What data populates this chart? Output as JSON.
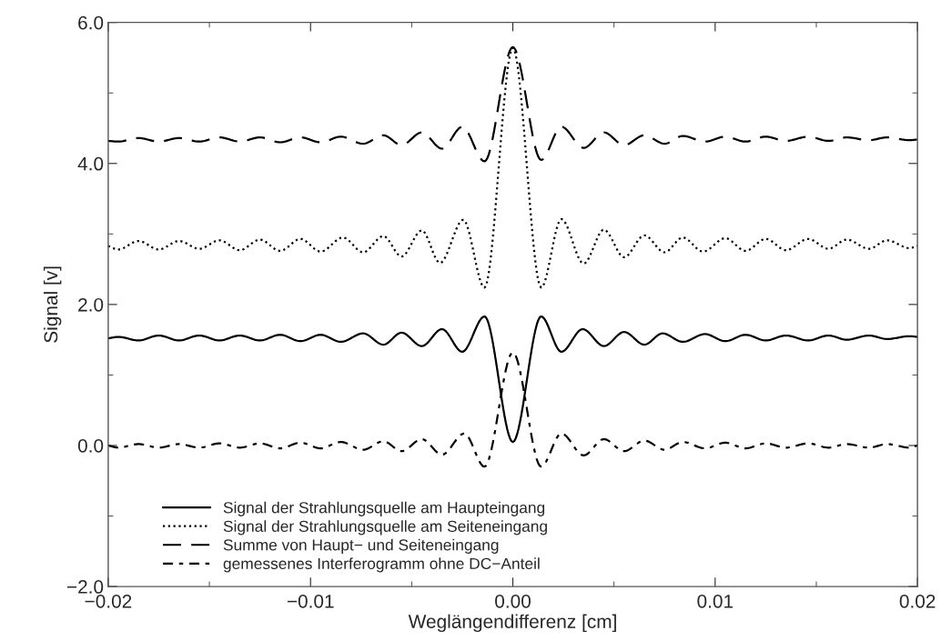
{
  "chart_data": {
    "type": "line",
    "xlabel": "Weglängendifferenz [cm]",
    "ylabel": "Signal [v]",
    "xlim": [
      -0.02,
      0.02
    ],
    "ylim": [
      -2.0,
      6.0
    ],
    "xticks": [
      {
        "value": -0.02,
        "label": "−0.02"
      },
      {
        "value": -0.015,
        "label": null
      },
      {
        "value": -0.01,
        "label": "−0.01"
      },
      {
        "value": -0.005,
        "label": null
      },
      {
        "value": 0,
        "label": "0.00"
      },
      {
        "value": 0.005,
        "label": null
      },
      {
        "value": 0.01,
        "label": "0.01"
      },
      {
        "value": 0.015,
        "label": null
      },
      {
        "value": 0.02,
        "label": "0.02"
      }
    ],
    "yticks": [
      {
        "value": -2,
        "label": "−2.0"
      },
      {
        "value": -1,
        "label": null
      },
      {
        "value": 0,
        "label": "0.0"
      },
      {
        "value": 1,
        "label": null
      },
      {
        "value": 2,
        "label": "2.0"
      },
      {
        "value": 3,
        "label": null
      },
      {
        "value": 4,
        "label": "4.0"
      },
      {
        "value": 5,
        "label": null
      },
      {
        "value": 6,
        "label": "6.0"
      }
    ],
    "grid": false,
    "legend": "bottom left",
    "marker": "none",
    "series": [
      {
        "name": "Signal der Strahlungsquelle am Haupteingang",
        "color": "#000000",
        "line_style": "solid",
        "x": [
          -0.02,
          -0.0195,
          -0.0185,
          -0.0175,
          -0.0165,
          -0.0155,
          -0.0145,
          -0.0135,
          -0.0125,
          -0.0115,
          -0.0105,
          -0.0095,
          -0.0085,
          -0.0074,
          -0.0064,
          -0.0055,
          -0.0045,
          -0.0035,
          -0.0025,
          -0.0014,
          0,
          0.0014,
          0.0024,
          0.00345,
          0.0045,
          0.0055,
          0.0065,
          0.0074,
          0.0084,
          0.0095,
          0.0105,
          0.0115,
          0.0125,
          0.0135,
          0.0146,
          0.0156,
          0.0165,
          0.0176,
          0.0185,
          0.0196,
          0.02
        ],
        "values": [
          1.52,
          1.54,
          1.49,
          1.56,
          1.49,
          1.56,
          1.49,
          1.56,
          1.49,
          1.57,
          1.48,
          1.57,
          1.47,
          1.59,
          1.43,
          1.6,
          1.41,
          1.65,
          1.33,
          1.83,
          0.05,
          1.83,
          1.33,
          1.65,
          1.41,
          1.61,
          1.43,
          1.59,
          1.47,
          1.58,
          1.48,
          1.57,
          1.49,
          1.56,
          1.49,
          1.56,
          1.5,
          1.56,
          1.51,
          1.55,
          1.54
        ]
      },
      {
        "name": "Signal der Strahlungsquelle am Seiteneingang",
        "color": "#000000",
        "line_style": "dotted",
        "x": [
          -0.02,
          -0.0195,
          -0.0185,
          -0.0175,
          -0.0165,
          -0.0155,
          -0.0145,
          -0.0135,
          -0.0125,
          -0.0115,
          -0.0105,
          -0.0095,
          -0.0084,
          -0.0074,
          -0.0064,
          -0.0055,
          -0.0045,
          -0.0036,
          -0.00245,
          -0.0014,
          0,
          0.0014,
          0.0024,
          0.0035,
          0.0045,
          0.0055,
          0.0065,
          0.0075,
          0.0084,
          0.0094,
          0.0105,
          0.0115,
          0.0125,
          0.0135,
          0.0146,
          0.0156,
          0.0165,
          0.0176,
          0.0185,
          0.0196,
          0.02
        ],
        "values": [
          2.83,
          2.78,
          2.9,
          2.78,
          2.9,
          2.79,
          2.91,
          2.77,
          2.92,
          2.76,
          2.93,
          2.75,
          2.95,
          2.74,
          2.97,
          2.68,
          3.05,
          2.59,
          3.2,
          2.24,
          5.64,
          2.24,
          3.21,
          2.58,
          3.06,
          2.67,
          2.98,
          2.74,
          2.95,
          2.75,
          2.94,
          2.76,
          2.93,
          2.77,
          2.93,
          2.79,
          2.92,
          2.79,
          2.91,
          2.8,
          2.83
        ]
      },
      {
        "name": "Summe von Haupt− und Seiteneingang",
        "color": "#000000",
        "line_style": "dashed",
        "x": [
          -0.02,
          -0.0195,
          -0.0185,
          -0.0175,
          -0.0165,
          -0.0155,
          -0.0145,
          -0.0135,
          -0.0125,
          -0.0115,
          -0.0105,
          -0.0095,
          -0.0085,
          -0.0074,
          -0.0064,
          -0.0055,
          -0.0045,
          -0.0035,
          -0.0025,
          -0.0014,
          0,
          0.0014,
          0.0024,
          0.0035,
          0.0045,
          0.0055,
          0.0065,
          0.0075,
          0.0084,
          0.0095,
          0.0105,
          0.0115,
          0.0125,
          0.0135,
          0.0146,
          0.0156,
          0.0165,
          0.0176,
          0.0185,
          0.0196,
          0.02
        ],
        "values": [
          4.32,
          4.31,
          4.36,
          4.31,
          4.36,
          4.31,
          4.37,
          4.31,
          4.37,
          4.3,
          4.37,
          4.3,
          4.38,
          4.28,
          4.4,
          4.26,
          4.44,
          4.21,
          4.52,
          4.03,
          5.65,
          4.05,
          4.52,
          4.22,
          4.44,
          4.26,
          4.4,
          4.28,
          4.39,
          4.31,
          4.38,
          4.31,
          4.38,
          4.32,
          4.38,
          4.32,
          4.37,
          4.33,
          4.37,
          4.33,
          4.34
        ]
      },
      {
        "name": "gemessenes Interferogramm ohne DC−Anteil",
        "color": "#000000",
        "line_style": "dashed",
        "x": [
          -0.02,
          -0.0195,
          -0.0185,
          -0.0175,
          -0.0165,
          -0.0155,
          -0.0145,
          -0.0135,
          -0.0125,
          -0.0115,
          -0.0105,
          -0.0095,
          -0.0085,
          -0.0074,
          -0.0064,
          -0.0055,
          -0.0045,
          -0.0035,
          -0.0024,
          -0.0014,
          0,
          0.0014,
          0.0024,
          0.0035,
          0.0045,
          0.0055,
          0.0065,
          0.0075,
          0.0084,
          0.0095,
          0.0105,
          0.0115,
          0.0125,
          0.0135,
          0.0146,
          0.0156,
          0.0165,
          0.0176,
          0.0185,
          0.0196,
          0.02
        ],
        "values": [
          0.0,
          -0.03,
          0.02,
          -0.03,
          0.02,
          -0.03,
          0.03,
          -0.03,
          0.03,
          -0.04,
          0.04,
          -0.04,
          0.05,
          -0.06,
          0.06,
          -0.08,
          0.09,
          -0.13,
          0.17,
          -0.3,
          1.32,
          -0.3,
          0.17,
          -0.14,
          0.09,
          -0.08,
          0.07,
          -0.06,
          0.05,
          -0.04,
          0.04,
          -0.04,
          0.03,
          -0.03,
          0.03,
          -0.03,
          0.02,
          -0.03,
          0.02,
          -0.03,
          0.0
        ]
      }
    ]
  }
}
